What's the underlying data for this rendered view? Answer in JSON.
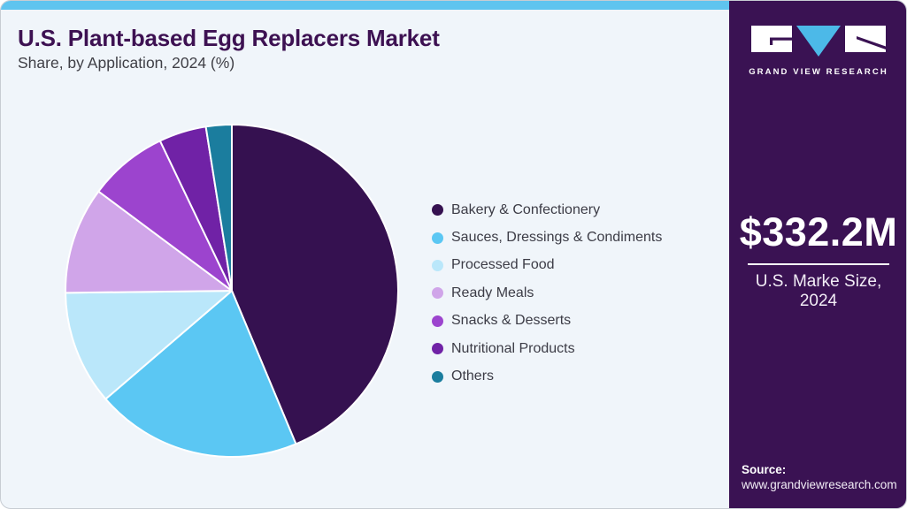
{
  "header": {
    "title": "U.S. Plant-based Egg Replacers Market",
    "subtitle": "Share, by Application, 2024 (%)"
  },
  "sidebar": {
    "brand": "GRAND VIEW RESEARCH",
    "market_size_value": "$332.2M",
    "market_size_label_line1": "U.S. Marke Size,",
    "market_size_label_line2": "2024",
    "source_label": "Source:",
    "source_url": "www.grandviewresearch.com",
    "background_color": "#3a1253",
    "logo_triangle_color": "#4cb9e8"
  },
  "theme": {
    "topbar_color": "#5fc4ef",
    "main_background": "#f0f5fa",
    "title_color": "#3d1152",
    "legend_text_color": "#3c3c46"
  },
  "chart_data": {
    "type": "pie",
    "title": "U.S. Plant-based Egg Replacers Market Share, by Application, 2024 (%)",
    "categories": [
      "Bakery & Confectionery",
      "Sauces, Dressings & Condiments",
      "Processed Food",
      "Ready Meals",
      "Snacks & Desserts",
      "Nutritional Products",
      "Others"
    ],
    "values": [
      43.7,
      20.0,
      11.1,
      10.4,
      7.7,
      4.6,
      2.5
    ],
    "colors": [
      "#351150",
      "#5bc7f3",
      "#bae7fa",
      "#d0a5e9",
      "#9c44ce",
      "#7022a6",
      "#1b7d9e"
    ],
    "units": "percent_share",
    "total": 100,
    "start_angle_deg": 0,
    "direction": "clockwise",
    "legend_position": "right",
    "value_labels_shown": false
  }
}
